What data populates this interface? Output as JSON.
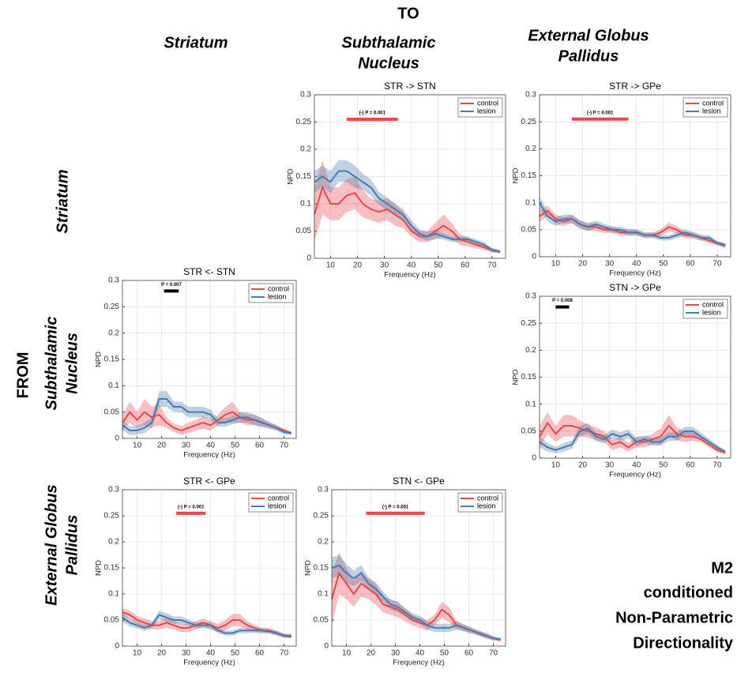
{
  "figure": {
    "to": "TO",
    "from": "FROM",
    "columns": [
      [
        "Striatum"
      ],
      [
        "Subthalamic",
        "Nucleus"
      ],
      [
        "External Globus",
        "Pallidus"
      ]
    ],
    "rows": [
      [
        "Striatum"
      ],
      [
        "Subthalamic",
        "Nucleus"
      ],
      [
        "External Globus",
        "Pallidus"
      ]
    ],
    "caption": [
      "M2",
      "conditioned",
      "Non-Parametric",
      "Directionality"
    ]
  },
  "chart_data": [
    {
      "type": "line",
      "title": "STR -> STN",
      "xlabel": "Frequency (Hz)",
      "ylabel": "NPD",
      "x": [
        4,
        7,
        10,
        13,
        16,
        19,
        22,
        25,
        28,
        31,
        34,
        37,
        40,
        43,
        46,
        49,
        52,
        55,
        58,
        61,
        64,
        67,
        70,
        73
      ],
      "xlim": [
        4,
        75
      ],
      "xticks": [
        10,
        20,
        30,
        40,
        50,
        60,
        70
      ],
      "ylim": [
        0,
        0.3
      ],
      "yticks": [
        0,
        0.05,
        0.1,
        0.15,
        0.2,
        0.25,
        0.3
      ],
      "grid": true,
      "legend": "upper right",
      "significance": {
        "label": "(-) P = 0.001",
        "x": [
          16,
          35
        ],
        "y": 0.255,
        "color": "#e8474c"
      },
      "series": [
        {
          "name": "control",
          "color": "#e8474c",
          "values": [
            0.08,
            0.13,
            0.1,
            0.1,
            0.115,
            0.12,
            0.1,
            0.09,
            0.085,
            0.09,
            0.08,
            0.07,
            0.05,
            0.04,
            0.04,
            0.05,
            0.06,
            0.05,
            0.035,
            0.03,
            0.025,
            0.02,
            0.015,
            0.012
          ],
          "error": [
            0.05,
            0.05,
            0.03,
            0.03,
            0.03,
            0.03,
            0.025,
            0.02,
            0.02,
            0.02,
            0.02,
            0.015,
            0.01,
            0.01,
            0.01,
            0.015,
            0.02,
            0.015,
            0.01,
            0.008,
            0.006,
            0.005,
            0.004,
            0.003
          ]
        },
        {
          "name": "lesion",
          "color": "#4a7bb0",
          "values": [
            0.14,
            0.15,
            0.14,
            0.16,
            0.16,
            0.15,
            0.14,
            0.13,
            0.11,
            0.1,
            0.09,
            0.08,
            0.06,
            0.045,
            0.04,
            0.045,
            0.04,
            0.035,
            0.035,
            0.035,
            0.03,
            0.025,
            0.015,
            0.012
          ],
          "error": [
            0.02,
            0.02,
            0.02,
            0.02,
            0.02,
            0.02,
            0.015,
            0.015,
            0.012,
            0.012,
            0.01,
            0.01,
            0.01,
            0.008,
            0.008,
            0.008,
            0.006,
            0.005,
            0.005,
            0.005,
            0.005,
            0.005,
            0.004,
            0.003
          ]
        }
      ]
    },
    {
      "type": "line",
      "title": "STR -> GPe",
      "xlabel": "Frequency (Hz)",
      "ylabel": "NPD",
      "x": [
        4,
        7,
        10,
        13,
        16,
        19,
        22,
        25,
        28,
        31,
        34,
        37,
        40,
        43,
        46,
        49,
        52,
        55,
        58,
        61,
        64,
        67,
        70,
        73
      ],
      "xlim": [
        4,
        75
      ],
      "xticks": [
        10,
        20,
        30,
        40,
        50,
        60,
        70
      ],
      "ylim": [
        0,
        0.3
      ],
      "yticks": [
        0,
        0.05,
        0.1,
        0.15,
        0.2,
        0.25,
        0.3
      ],
      "grid": true,
      "legend": "upper right",
      "significance": {
        "label": "(-) P = 0.001",
        "x": [
          16,
          37
        ],
        "y": 0.255,
        "color": "#e8474c"
      },
      "series": [
        {
          "name": "control",
          "color": "#e8474c",
          "values": [
            0.075,
            0.085,
            0.07,
            0.065,
            0.07,
            0.06,
            0.055,
            0.055,
            0.05,
            0.05,
            0.045,
            0.045,
            0.045,
            0.04,
            0.04,
            0.045,
            0.055,
            0.05,
            0.04,
            0.04,
            0.035,
            0.03,
            0.025,
            0.02
          ],
          "error": [
            0.01,
            0.01,
            0.008,
            0.008,
            0.008,
            0.008,
            0.007,
            0.007,
            0.006,
            0.006,
            0.006,
            0.006,
            0.006,
            0.005,
            0.005,
            0.006,
            0.008,
            0.007,
            0.006,
            0.006,
            0.005,
            0.005,
            0.004,
            0.004
          ]
        },
        {
          "name": "lesion",
          "color": "#4a7bb0",
          "values": [
            0.1,
            0.075,
            0.065,
            0.07,
            0.07,
            0.06,
            0.055,
            0.06,
            0.055,
            0.05,
            0.05,
            0.045,
            0.045,
            0.04,
            0.04,
            0.035,
            0.035,
            0.04,
            0.045,
            0.04,
            0.035,
            0.035,
            0.025,
            0.022
          ],
          "error": [
            0.012,
            0.01,
            0.008,
            0.008,
            0.008,
            0.007,
            0.007,
            0.007,
            0.006,
            0.006,
            0.006,
            0.006,
            0.005,
            0.005,
            0.005,
            0.005,
            0.005,
            0.006,
            0.006,
            0.005,
            0.005,
            0.005,
            0.004,
            0.004
          ]
        }
      ]
    },
    {
      "type": "line",
      "title": "STR <- STN",
      "xlabel": "Frequency (Hz)",
      "ylabel": "NPD",
      "x": [
        4,
        7,
        10,
        13,
        16,
        19,
        22,
        25,
        28,
        31,
        34,
        37,
        40,
        43,
        46,
        49,
        52,
        55,
        58,
        61,
        64,
        67,
        70,
        73
      ],
      "xlim": [
        4,
        75
      ],
      "xticks": [
        10,
        20,
        30,
        40,
        50,
        60,
        70
      ],
      "ylim": [
        0,
        0.3
      ],
      "yticks": [
        0,
        0.05,
        0.1,
        0.15,
        0.2,
        0.25,
        0.3
      ],
      "grid": true,
      "legend": "upper right",
      "significance": {
        "label": "P = 0.007",
        "x": [
          21,
          27
        ],
        "y": 0.28,
        "color": "#000000"
      },
      "series": [
        {
          "name": "control",
          "color": "#e8474c",
          "values": [
            0.03,
            0.05,
            0.035,
            0.05,
            0.04,
            0.045,
            0.03,
            0.02,
            0.015,
            0.02,
            0.025,
            0.03,
            0.025,
            0.035,
            0.045,
            0.05,
            0.04,
            0.035,
            0.035,
            0.03,
            0.025,
            0.02,
            0.015,
            0.01
          ],
          "error": [
            0.015,
            0.02,
            0.015,
            0.025,
            0.02,
            0.02,
            0.01,
            0.008,
            0.008,
            0.01,
            0.01,
            0.012,
            0.01,
            0.01,
            0.015,
            0.02,
            0.01,
            0.01,
            0.01,
            0.008,
            0.006,
            0.005,
            0.004,
            0.003
          ]
        },
        {
          "name": "lesion",
          "color": "#4a7bb0",
          "values": [
            0.025,
            0.015,
            0.015,
            0.02,
            0.03,
            0.075,
            0.075,
            0.06,
            0.06,
            0.05,
            0.05,
            0.05,
            0.045,
            0.03,
            0.03,
            0.035,
            0.04,
            0.04,
            0.035,
            0.03,
            0.025,
            0.02,
            0.012,
            0.01
          ],
          "error": [
            0.01,
            0.008,
            0.008,
            0.01,
            0.01,
            0.015,
            0.015,
            0.01,
            0.01,
            0.01,
            0.01,
            0.01,
            0.01,
            0.008,
            0.008,
            0.008,
            0.01,
            0.01,
            0.01,
            0.008,
            0.006,
            0.005,
            0.004,
            0.003
          ]
        }
      ]
    },
    {
      "type": "line",
      "title": "STN -> GPe",
      "xlabel": "Frequency (Hz)",
      "ylabel": "NPD",
      "x": [
        4,
        7,
        10,
        13,
        16,
        19,
        22,
        25,
        28,
        31,
        34,
        37,
        40,
        43,
        46,
        49,
        52,
        55,
        58,
        61,
        64,
        67,
        70,
        73
      ],
      "xlim": [
        4,
        75
      ],
      "xticks": [
        10,
        20,
        30,
        40,
        50,
        60,
        70
      ],
      "ylim": [
        0,
        0.3
      ],
      "yticks": [
        0,
        0.05,
        0.1,
        0.15,
        0.2,
        0.25,
        0.3
      ],
      "grid": true,
      "legend": "upper right",
      "significance": {
        "label": "P = 0.008",
        "x": [
          10,
          15
        ],
        "y": 0.28,
        "color": "#000000"
      },
      "series": [
        {
          "name": "control",
          "color": "#e8474c",
          "values": [
            0.04,
            0.065,
            0.045,
            0.06,
            0.06,
            0.055,
            0.05,
            0.045,
            0.04,
            0.025,
            0.03,
            0.02,
            0.03,
            0.03,
            0.035,
            0.04,
            0.06,
            0.045,
            0.04,
            0.04,
            0.035,
            0.025,
            0.015,
            0.01
          ],
          "error": [
            0.02,
            0.02,
            0.015,
            0.02,
            0.02,
            0.015,
            0.012,
            0.012,
            0.01,
            0.01,
            0.01,
            0.008,
            0.01,
            0.01,
            0.01,
            0.015,
            0.02,
            0.012,
            0.01,
            0.008,
            0.006,
            0.005,
            0.004,
            0.003
          ]
        },
        {
          "name": "lesion",
          "color": "#4a7bb0",
          "values": [
            0.03,
            0.02,
            0.015,
            0.02,
            0.025,
            0.05,
            0.055,
            0.04,
            0.035,
            0.045,
            0.04,
            0.045,
            0.03,
            0.035,
            0.03,
            0.03,
            0.04,
            0.04,
            0.05,
            0.05,
            0.04,
            0.03,
            0.02,
            0.012
          ],
          "error": [
            0.01,
            0.008,
            0.006,
            0.008,
            0.008,
            0.01,
            0.01,
            0.008,
            0.008,
            0.008,
            0.008,
            0.008,
            0.008,
            0.007,
            0.007,
            0.007,
            0.008,
            0.008,
            0.008,
            0.008,
            0.007,
            0.006,
            0.004,
            0.003
          ]
        }
      ]
    },
    {
      "type": "line",
      "title": "STR <- GPe",
      "xlabel": "Frequency (Hz)",
      "ylabel": "NPD",
      "x": [
        4,
        7,
        10,
        13,
        16,
        19,
        22,
        25,
        28,
        31,
        34,
        37,
        40,
        43,
        46,
        49,
        52,
        55,
        58,
        61,
        64,
        67,
        70,
        73
      ],
      "xlim": [
        4,
        75
      ],
      "xticks": [
        10,
        20,
        30,
        40,
        50,
        60,
        70
      ],
      "ylim": [
        0,
        0.3
      ],
      "yticks": [
        0,
        0.05,
        0.1,
        0.15,
        0.2,
        0.25,
        0.3
      ],
      "grid": true,
      "legend": "upper right",
      "significance": {
        "label": "(-) P = 0.001",
        "x": [
          26,
          38
        ],
        "y": 0.255,
        "color": "#e8474c"
      },
      "series": [
        {
          "name": "control",
          "color": "#e8474c",
          "values": [
            0.065,
            0.06,
            0.05,
            0.045,
            0.04,
            0.04,
            0.045,
            0.04,
            0.035,
            0.035,
            0.04,
            0.045,
            0.04,
            0.035,
            0.04,
            0.05,
            0.05,
            0.04,
            0.035,
            0.03,
            0.03,
            0.025,
            0.02,
            0.02
          ],
          "error": [
            0.008,
            0.008,
            0.008,
            0.008,
            0.008,
            0.008,
            0.01,
            0.008,
            0.008,
            0.008,
            0.008,
            0.008,
            0.008,
            0.008,
            0.01,
            0.012,
            0.012,
            0.008,
            0.006,
            0.005,
            0.005,
            0.005,
            0.004,
            0.004
          ]
        },
        {
          "name": "lesion",
          "color": "#4a7bb0",
          "values": [
            0.055,
            0.045,
            0.04,
            0.035,
            0.04,
            0.06,
            0.055,
            0.05,
            0.05,
            0.045,
            0.04,
            0.04,
            0.04,
            0.03,
            0.025,
            0.025,
            0.03,
            0.03,
            0.03,
            0.03,
            0.028,
            0.025,
            0.02,
            0.018
          ],
          "error": [
            0.008,
            0.007,
            0.006,
            0.006,
            0.006,
            0.008,
            0.008,
            0.007,
            0.007,
            0.006,
            0.006,
            0.006,
            0.006,
            0.005,
            0.005,
            0.005,
            0.005,
            0.005,
            0.005,
            0.005,
            0.004,
            0.004,
            0.004,
            0.003
          ]
        }
      ]
    },
    {
      "type": "line",
      "title": "STN <- GPe",
      "xlabel": "Frequency (Hz)",
      "ylabel": "NPD",
      "x": [
        4,
        7,
        10,
        13,
        16,
        19,
        22,
        25,
        28,
        31,
        34,
        37,
        40,
        43,
        46,
        49,
        52,
        55,
        58,
        61,
        64,
        67,
        70,
        73
      ],
      "xlim": [
        4,
        75
      ],
      "xticks": [
        10,
        20,
        30,
        40,
        50,
        60,
        70
      ],
      "ylim": [
        0,
        0.3
      ],
      "yticks": [
        0,
        0.05,
        0.1,
        0.15,
        0.2,
        0.25,
        0.3
      ],
      "grid": true,
      "legend": "upper right",
      "significance": {
        "label": "(-) P = 0.001",
        "x": [
          18,
          42
        ],
        "y": 0.255,
        "color": "#e8474c"
      },
      "series": [
        {
          "name": "control",
          "color": "#e8474c",
          "values": [
            0.09,
            0.14,
            0.12,
            0.1,
            0.12,
            0.11,
            0.1,
            0.08,
            0.075,
            0.07,
            0.06,
            0.05,
            0.045,
            0.04,
            0.05,
            0.07,
            0.06,
            0.04,
            0.035,
            0.03,
            0.025,
            0.02,
            0.015,
            0.012
          ],
          "error": [
            0.05,
            0.04,
            0.03,
            0.025,
            0.025,
            0.02,
            0.02,
            0.015,
            0.015,
            0.015,
            0.012,
            0.01,
            0.01,
            0.01,
            0.01,
            0.015,
            0.015,
            0.008,
            0.007,
            0.006,
            0.005,
            0.005,
            0.004,
            0.003
          ]
        },
        {
          "name": "lesion",
          "color": "#4a7bb0",
          "values": [
            0.15,
            0.155,
            0.14,
            0.13,
            0.14,
            0.12,
            0.11,
            0.095,
            0.08,
            0.075,
            0.065,
            0.055,
            0.05,
            0.04,
            0.035,
            0.035,
            0.035,
            0.04,
            0.035,
            0.03,
            0.025,
            0.02,
            0.015,
            0.013
          ],
          "error": [
            0.02,
            0.02,
            0.018,
            0.015,
            0.015,
            0.012,
            0.012,
            0.01,
            0.01,
            0.01,
            0.008,
            0.008,
            0.008,
            0.008,
            0.008,
            0.008,
            0.008,
            0.008,
            0.006,
            0.005,
            0.005,
            0.005,
            0.004,
            0.003
          ]
        }
      ]
    }
  ]
}
